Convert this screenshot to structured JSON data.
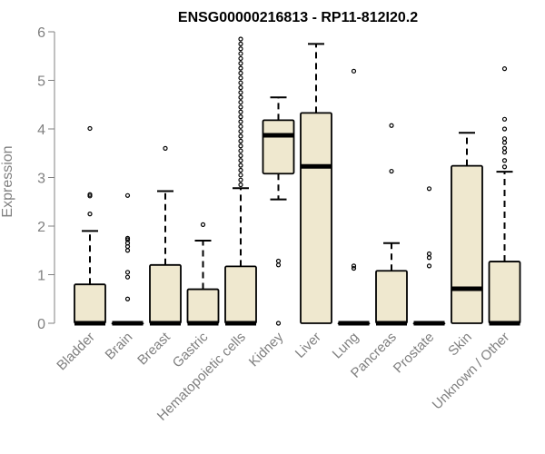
{
  "chart_data": {
    "type": "boxplot",
    "title": "ENSG00000216813 - RP11-812I20.2",
    "ylabel": "Expression",
    "xlabel": "",
    "ylim": [
      0,
      6
    ],
    "yticks": [
      0,
      1,
      2,
      3,
      4,
      5,
      6
    ],
    "grid": false,
    "legend": "none",
    "box_fill": "#efe8cf",
    "box_stroke": "#000000",
    "axis_color": "#808080",
    "categories": [
      "Bladder",
      "Brain",
      "Breast",
      "Gastric",
      "Hematopoietic cells",
      "Kidney",
      "Liver",
      "Lung",
      "Pancreas",
      "Prostate",
      "Skin",
      "Unknown / Other"
    ],
    "boxes": [
      {
        "category": "Bladder",
        "whisker_low": 0,
        "q1": 0,
        "median": 0,
        "q3": 0.8,
        "whisker_high": 1.9,
        "outliers": [
          2.25,
          2.62,
          2.65,
          4.01
        ]
      },
      {
        "category": "Brain",
        "whisker_low": 0,
        "q1": 0,
        "median": 0,
        "q3": 0,
        "whisker_high": 0,
        "outliers": [
          0.5,
          0.95,
          1.05,
          1.5,
          1.58,
          1.65,
          1.72,
          1.75,
          2.63
        ]
      },
      {
        "category": "Breast",
        "whisker_low": 0,
        "q1": 0,
        "median": 0,
        "q3": 1.2,
        "whisker_high": 2.72,
        "outliers": [
          3.6
        ]
      },
      {
        "category": "Gastric",
        "whisker_low": 0,
        "q1": 0,
        "median": 0,
        "q3": 0.7,
        "whisker_high": 1.7,
        "outliers": [
          2.03
        ]
      },
      {
        "category": "Hematopoietic cells",
        "whisker_low": 0,
        "q1": 0,
        "median": 0,
        "q3": 1.17,
        "whisker_high": 2.78,
        "outliers": [
          2.85,
          2.95,
          3.05,
          3.15,
          3.25,
          3.35,
          3.45,
          3.55,
          3.65,
          3.75,
          3.85,
          3.95,
          4.05,
          4.15,
          4.25,
          4.35,
          4.45,
          4.55,
          4.65,
          4.75,
          4.85,
          4.95,
          5.05,
          5.15,
          5.25,
          5.35,
          5.45,
          5.55,
          5.65,
          5.75,
          5.85
        ]
      },
      {
        "category": "Kidney",
        "whisker_low": 2.55,
        "q1": 3.08,
        "median": 3.87,
        "q3": 4.18,
        "whisker_high": 4.65,
        "outliers": [
          0,
          1.2,
          1.28
        ]
      },
      {
        "category": "Liver",
        "whisker_low": 0,
        "q1": 0,
        "median": 3.23,
        "q3": 4.33,
        "whisker_high": 5.75,
        "outliers": []
      },
      {
        "category": "Lung",
        "whisker_low": 0,
        "q1": 0,
        "median": 0,
        "q3": 0,
        "whisker_high": 0,
        "outliers": [
          1.13,
          1.18,
          5.19
        ]
      },
      {
        "category": "Pancreas",
        "whisker_low": 0,
        "q1": 0,
        "median": 0,
        "q3": 1.08,
        "whisker_high": 1.65,
        "outliers": [
          3.13,
          4.07
        ]
      },
      {
        "category": "Prostate",
        "whisker_low": 0,
        "q1": 0,
        "median": 0,
        "q3": 0,
        "whisker_high": 0,
        "outliers": [
          1.18,
          1.35,
          1.43,
          2.77
        ]
      },
      {
        "category": "Skin",
        "whisker_low": 0,
        "q1": 0,
        "median": 0.71,
        "q3": 3.24,
        "whisker_high": 3.92,
        "outliers": []
      },
      {
        "category": "Unknown / Other",
        "whisker_low": 0,
        "q1": 0,
        "median": 0,
        "q3": 1.27,
        "whisker_high": 3.12,
        "outliers": [
          3.22,
          3.35,
          3.52,
          3.6,
          3.72,
          3.8,
          4.0,
          4.2,
          5.24
        ]
      }
    ]
  }
}
